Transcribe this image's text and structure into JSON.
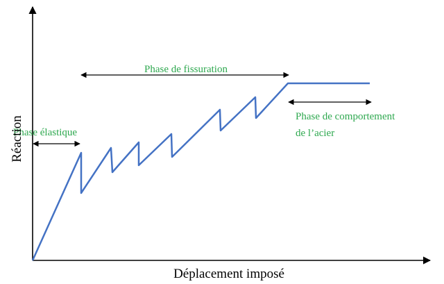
{
  "axes": {
    "x_label": "Déplacement imposé",
    "y_label": "Réaction"
  },
  "annotations": {
    "elastic": "Phase élastique",
    "cracking": "Phase de fissuration",
    "steel_line1": "Phase de comportement",
    "steel_line2": "de l’acier"
  }
}
